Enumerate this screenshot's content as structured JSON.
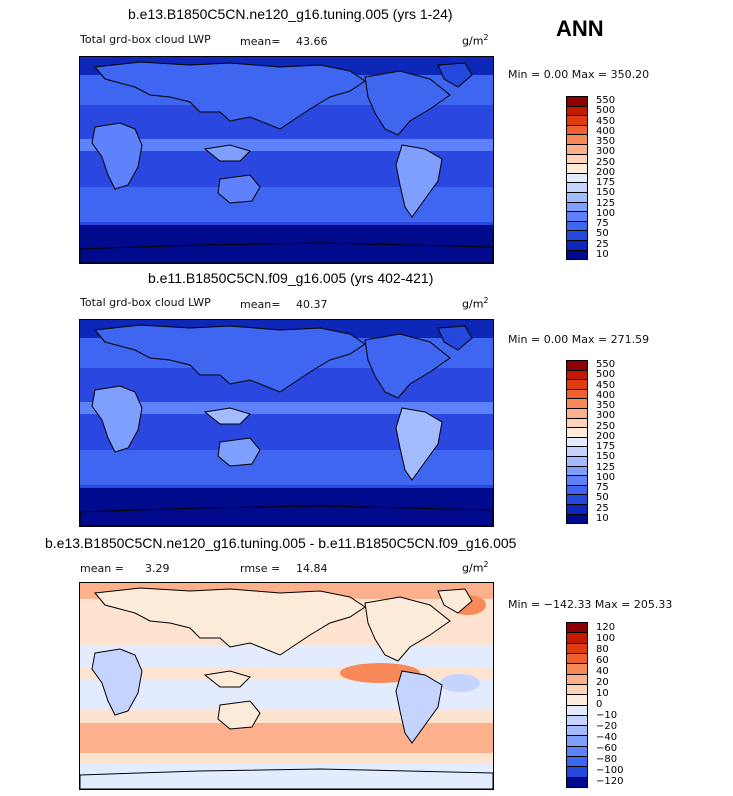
{
  "season": "ANN",
  "panel1": {
    "title": "b.e13.B1850C5CN.ne120_g16.tuning.005 (yrs 1-24)",
    "variable": "Total grd-box cloud LWP",
    "mean_label": "mean=",
    "mean_value": "43.66",
    "units": "g/m",
    "units_exp": "2",
    "minmax": "Min =    0.00  Max = 350.20",
    "colorbar_labels": [
      "550",
      "500",
      "450",
      "400",
      "350",
      "300",
      "250",
      "200",
      "175",
      "150",
      "125",
      "100",
      "75",
      "50",
      "25",
      "10"
    ],
    "colors": [
      "#8c0000",
      "#c41a00",
      "#e03c0f",
      "#f0602e",
      "#f88a5a",
      "#fcb08c",
      "#fdd3b8",
      "#fdebd9",
      "#e3ecff",
      "#c4d4ff",
      "#a3bbff",
      "#7f9fff",
      "#5d82fb",
      "#3f66f0",
      "#2447dc",
      "#0d28b8",
      "#000a8c"
    ],
    "ocean_color": "#2a48e0"
  },
  "panel2": {
    "title": "b.e11.B1850C5CN.f09_g16.005 (yrs 402-421)",
    "variable": "Total grd-box cloud LWP",
    "mean_label": "mean=",
    "mean_value": "40.37",
    "units": "g/m",
    "units_exp": "2",
    "minmax": "Min =    0.00  Max = 271.59",
    "colorbar_labels": [
      "550",
      "500",
      "450",
      "400",
      "350",
      "300",
      "250",
      "200",
      "175",
      "150",
      "125",
      "100",
      "75",
      "50",
      "25",
      "10"
    ],
    "colors": [
      "#8c0000",
      "#c41a00",
      "#e03c0f",
      "#f0602e",
      "#f88a5a",
      "#fcb08c",
      "#fdd3b8",
      "#fdebd9",
      "#e3ecff",
      "#c4d4ff",
      "#a3bbff",
      "#7f9fff",
      "#5d82fb",
      "#3f66f0",
      "#2447dc",
      "#0d28b8",
      "#000a8c"
    ],
    "ocean_color": "#2a48e0"
  },
  "panel3": {
    "title": "b.e13.B1850C5CN.ne120_g16.tuning.005 - b.e11.B1850C5CN.f09_g16.005",
    "mean_label": "mean =",
    "mean_value": "3.29",
    "rmse_label": "rmse =",
    "rmse_value": "14.84",
    "units": "g/m",
    "units_exp": "2",
    "minmax": "Min = −142.33  Max = 205.33",
    "colorbar_labels": [
      "120",
      "100",
      "80",
      "60",
      "40",
      "20",
      "10",
      "0",
      "−10",
      "−20",
      "−40",
      "−60",
      "−80",
      "−100",
      "−120"
    ],
    "colors": [
      "#8c0000",
      "#c41a00",
      "#e03c0f",
      "#f0602e",
      "#f88a5a",
      "#fcb08c",
      "#fdd3b8",
      "#fdebd9",
      "#e3ecff",
      "#c4d4ff",
      "#a3bbff",
      "#7f9fff",
      "#5d82fb",
      "#3f66f0",
      "#2447dc",
      "#000a8c"
    ],
    "ocean_color": "#fde3d0"
  }
}
